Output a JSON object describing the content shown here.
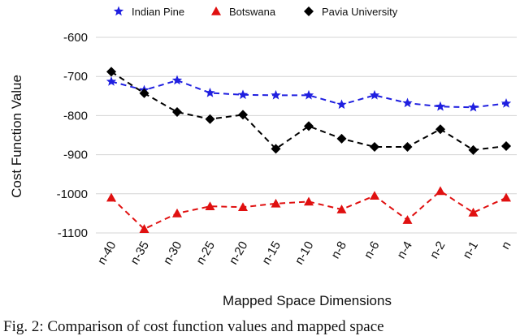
{
  "chart_data": {
    "type": "line",
    "categories": [
      "n-40",
      "n-35",
      "n-30",
      "n-25",
      "n-20",
      "n-15",
      "n-10",
      "n-8",
      "n-6",
      "n-4",
      "n-2",
      "n-1",
      "n"
    ],
    "series": [
      {
        "name": "Indian Pine",
        "color": "#1f1fe0",
        "marker": "star",
        "values": [
          -713,
          -735,
          -710,
          -742,
          -747,
          -748,
          -748,
          -772,
          -748,
          -768,
          -777,
          -779,
          -769
        ]
      },
      {
        "name": "Botswana",
        "color": "#e01010",
        "marker": "triangle",
        "values": [
          -1010,
          -1090,
          -1050,
          -1032,
          -1034,
          -1025,
          -1020,
          -1040,
          -1005,
          -1067,
          -993,
          -1048,
          -1010
        ]
      },
      {
        "name": "Pavia University",
        "color": "#000000",
        "marker": "diamond",
        "values": [
          -688,
          -743,
          -791,
          -809,
          -798,
          -885,
          -827,
          -859,
          -880,
          -880,
          -835,
          -888,
          -878
        ]
      }
    ],
    "xlabel": "Mapped Space Dimensions",
    "ylabel": "Cost Function Value",
    "ylim": [
      -1100,
      -600
    ],
    "yticks": [
      -600,
      -700,
      -800,
      -900,
      -1000,
      -1100
    ],
    "grid": "horizontal",
    "legend": "top"
  },
  "caption": "Fig. 2: Comparison of cost function values and mapped space"
}
